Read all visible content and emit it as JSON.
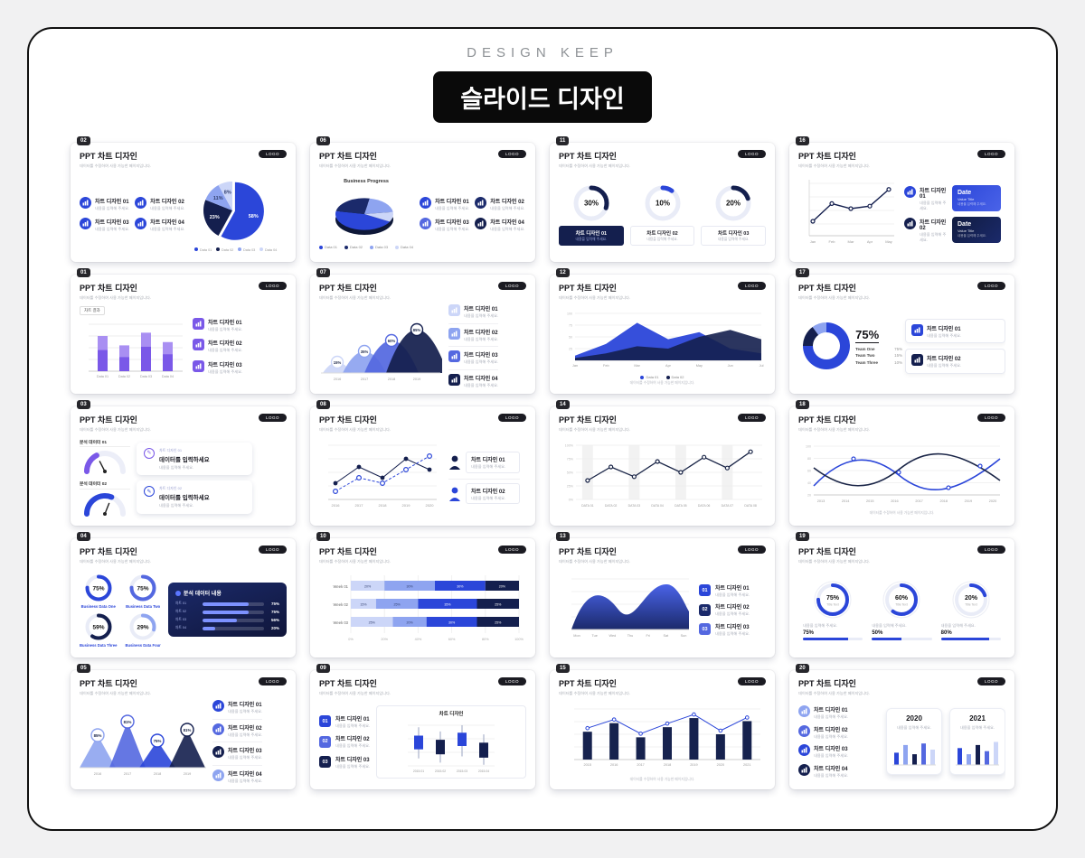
{
  "page": {
    "brand": "DESIGN KEEP",
    "title": "슬라이드 디자인"
  },
  "common": {
    "slide_title": "PPT 차트 디자인",
    "slide_subtitle": "데이터를 수정하여 사용 가능한 페이지입니다.",
    "logo": "LOGO",
    "item_sub": "내용을 입력해 주세요.",
    "caption": "데이터를 수정하여 사용 가능한 페이지입니다."
  },
  "colors": {
    "blue": "#2b46d9",
    "blue2": "#5468e0",
    "light": "#8ea4f0",
    "pale": "#ccd6f8",
    "navy": "#141f4e",
    "navy2": "#1b2a6b",
    "purple": "#7a58e8",
    "purple2": "#a98ff2",
    "track": "#e9ecf7"
  },
  "slides": [
    {
      "num": "02",
      "layout": "pie-legend",
      "items": [
        {
          "label": "차트 디자인 01"
        },
        {
          "label": "차트 디자인 02"
        },
        {
          "label": "차트 디자인 03"
        },
        {
          "label": "차트 디자인 04"
        }
      ],
      "pie": {
        "values": [
          58,
          23,
          11,
          8
        ],
        "labels": [
          "58%",
          "23%",
          "11%",
          "8%"
        ],
        "legend": [
          "Data 01",
          "Data 02",
          "Data 03",
          "Data 04"
        ]
      }
    },
    {
      "num": "06",
      "layout": "pie3d",
      "chart_title": "Business Progress",
      "pie": {
        "values": [
          45,
          25,
          20,
          10
        ],
        "legend": [
          "Data 01",
          "Data 02",
          "Data 03",
          "Data 04"
        ]
      },
      "items": [
        {
          "label": "차트 디자인 01"
        },
        {
          "label": "차트 디자인 02"
        },
        {
          "label": "차트 디자인 03"
        },
        {
          "label": "차트 디자인 04"
        }
      ]
    },
    {
      "num": "11",
      "layout": "donut-row",
      "items": [
        {
          "pct": 30,
          "label": "차트 디자인 01"
        },
        {
          "pct": 10,
          "label": "차트 디자인 02"
        },
        {
          "pct": 20,
          "label": "차트 디자인 03"
        }
      ]
    },
    {
      "num": "16",
      "layout": "line-dates",
      "line": {
        "values": [
          25,
          60,
          50,
          55,
          88
        ],
        "x": [
          "Jan",
          "Feb",
          "Mar",
          "Apr",
          "May"
        ]
      },
      "dates": [
        {
          "item": "차트 디자인 01",
          "date_label": "Date",
          "value_title": "Value Title"
        },
        {
          "item": "차트 디자인 02",
          "date_label": "Date",
          "value_title": "Value Title"
        }
      ]
    },
    {
      "num": "01",
      "layout": "purple-bars",
      "tag": "차트 결과",
      "bars": {
        "values": [
          75,
          55,
          82,
          62
        ],
        "inner": [
          45,
          30,
          52,
          36
        ],
        "x": [
          "Data 01",
          "Data 02",
          "Data 03",
          "Data 04"
        ]
      },
      "items": [
        {
          "label": "차트 디자인 01"
        },
        {
          "label": "차트 디자인 02"
        },
        {
          "label": "차트 디자인 03"
        }
      ]
    },
    {
      "num": "07",
      "layout": "hills",
      "hills": [
        {
          "pct": "15%"
        },
        {
          "pct": "35%"
        },
        {
          "pct": "60%"
        },
        {
          "pct": "85%"
        }
      ],
      "x": [
        "2016",
        "2017",
        "2018",
        "2019"
      ],
      "items": [
        {
          "label": "차트 디자인 01"
        },
        {
          "label": "차트 디자인 02"
        },
        {
          "label": "차트 디자인 03"
        },
        {
          "label": "차트 디자인 04"
        }
      ]
    },
    {
      "num": "12",
      "layout": "mountains",
      "series": [
        {
          "name": "Data 01",
          "values": [
            10,
            35,
            80,
            45,
            60,
            25,
            15
          ]
        },
        {
          "name": "Data 02",
          "values": [
            5,
            15,
            30,
            25,
            50,
            65,
            45
          ]
        }
      ],
      "x": [
        "Jan",
        "Feb",
        "Mar",
        "Apr",
        "May",
        "Jun",
        "Jul"
      ],
      "ylabels": [
        "100",
        "75",
        "50",
        "25"
      ]
    },
    {
      "num": "17",
      "layout": "donut-team",
      "donut": {
        "values": [
          75,
          15,
          10
        ],
        "big": "75%"
      },
      "teams": [
        {
          "name": "Team One",
          "value": "75%"
        },
        {
          "name": "Team Two",
          "value": "15%"
        },
        {
          "name": "Team Three",
          "value": "10%"
        }
      ],
      "cards": [
        {
          "label": "차트 디자인 01"
        },
        {
          "label": "차트 디자인 02"
        }
      ]
    },
    {
      "num": "03",
      "layout": "gauges",
      "gauges": [
        {
          "label": "분석 데이터 01",
          "frac": 0.35
        },
        {
          "label": "분석 데이터 02",
          "frac": 0.62
        }
      ],
      "inputs": [
        {
          "tag": "차트 디자인 01",
          "text": "데이터를 입력하세요"
        },
        {
          "tag": "차트 디자인 02",
          "text": "데이터를 입력하세요"
        }
      ]
    },
    {
      "num": "08",
      "layout": "scatter",
      "series": [
        {
          "values": [
            30,
            60,
            40,
            75,
            55
          ]
        },
        {
          "values": [
            15,
            40,
            30,
            55,
            80
          ]
        }
      ],
      "x": [
        "2016",
        "2017",
        "2018",
        "2019",
        "2020"
      ],
      "persons": [
        {
          "label": "차트 디자인 01"
        },
        {
          "label": "차트 디자인 02"
        }
      ]
    },
    {
      "num": "14",
      "layout": "step",
      "values": [
        35,
        60,
        42,
        70,
        50,
        78,
        58,
        88
      ],
      "x": [
        "DATA 01",
        "DATA 02",
        "DATA 03",
        "DATA 04",
        "DATA 05",
        "DATA 06",
        "DATA 07",
        "DATA 08"
      ],
      "ylabels": [
        "100%",
        "75%",
        "50%",
        "25%",
        "0%"
      ]
    },
    {
      "num": "18",
      "layout": "waves",
      "ylabels": [
        "100",
        "80",
        "60",
        "40",
        "20"
      ],
      "x": [
        "2013",
        "2014",
        "2015",
        "2016",
        "2017",
        "2018",
        "2019",
        "2020"
      ]
    },
    {
      "num": "04",
      "layout": "donuts-panel",
      "donuts": [
        {
          "pct": 75,
          "label": "Business Data One"
        },
        {
          "pct": 75,
          "label": "Business Data Two"
        },
        {
          "pct": 59,
          "label": "Business Data Three"
        },
        {
          "pct": 29,
          "label": "Business Data Four"
        }
      ],
      "panel": {
        "title": "분석 데이터 내용",
        "rows": [
          {
            "label": "차트 01",
            "pct": 75
          },
          {
            "label": "차트 02",
            "pct": 75
          },
          {
            "label": "차트 03",
            "pct": 56
          },
          {
            "label": "차트 04",
            "pct": 20
          }
        ]
      }
    },
    {
      "num": "10",
      "layout": "hstack",
      "rows": [
        {
          "label": "Week 01",
          "segments": [
            20,
            30,
            30,
            20
          ]
        },
        {
          "label": "Week 02",
          "segments": [
            15,
            25,
            35,
            25
          ]
        },
        {
          "label": "Week 03",
          "segments": [
            25,
            20,
            30,
            25
          ]
        }
      ],
      "xticks": [
        "0%",
        "20%",
        "40%",
        "60%",
        "80%",
        "100%"
      ]
    },
    {
      "num": "13",
      "layout": "wave-list",
      "x": [
        "Mon",
        "Tue",
        "Wed",
        "Thu",
        "Fri",
        "Sat",
        "Sun"
      ],
      "items": [
        {
          "num": "01",
          "label": "차트 디자인 01"
        },
        {
          "num": "02",
          "label": "차트 디자인 02"
        },
        {
          "num": "03",
          "label": "차트 디자인 03"
        }
      ]
    },
    {
      "num": "19",
      "layout": "rings",
      "rings": [
        {
          "pct": 75,
          "title": "Title Text"
        },
        {
          "pct": 60,
          "title": "Title Text"
        },
        {
          "pct": 20,
          "title": "Title Text"
        }
      ],
      "progress": [
        {
          "pct": 75
        },
        {
          "pct": 50
        },
        {
          "pct": 80
        }
      ]
    },
    {
      "num": "05",
      "layout": "peaks",
      "peaks": [
        {
          "value": 60,
          "pct": "85%",
          "x": "2016"
        },
        {
          "value": 85,
          "pct": "81%",
          "x": "2017"
        },
        {
          "value": 50,
          "pct": "75%",
          "x": "2018"
        },
        {
          "value": 70,
          "pct": "81%",
          "x": "2019"
        }
      ],
      "items": [
        {
          "label": "차트 디자인 01"
        },
        {
          "label": "차트 디자인 02"
        },
        {
          "label": "차트 디자인 03"
        },
        {
          "label": "차트 디자인 04"
        }
      ]
    },
    {
      "num": "09",
      "layout": "list-box",
      "chart_title": "차트 디자인",
      "items": [
        {
          "num": "01",
          "label": "차트 디자인 01"
        },
        {
          "num": "02",
          "label": "차트 디자인 02"
        },
        {
          "num": "03",
          "label": "차트 디자인 03"
        }
      ],
      "candles": [
        {
          "high": 95,
          "open": 75,
          "close": 42,
          "low": 20,
          "x": "2015.01"
        },
        {
          "high": 85,
          "open": 65,
          "close": 30,
          "low": 10,
          "x": "2015.02"
        },
        {
          "high": 100,
          "open": 82,
          "close": 50,
          "low": 25,
          "x": "2015.03"
        },
        {
          "high": 78,
          "open": 58,
          "close": 22,
          "low": 5,
          "x": "2015.04"
        }
      ]
    },
    {
      "num": "15",
      "layout": "bars-line",
      "values": [
        55,
        72,
        44,
        64,
        82,
        50,
        76
      ],
      "x": [
        "2015",
        "2016",
        "2017",
        "2018",
        "2019",
        "2020",
        "2021"
      ]
    },
    {
      "num": "20",
      "layout": "phones",
      "items": [
        {
          "label": "차트 디자인 01"
        },
        {
          "label": "차트 디자인 02"
        },
        {
          "label": "차트 디자인 03"
        },
        {
          "label": "차트 디자인 04"
        }
      ],
      "cards": [
        {
          "year": "2020",
          "values": [
            40,
            65,
            35,
            70,
            50
          ]
        },
        {
          "year": "2021",
          "values": [
            55,
            35,
            65,
            45,
            75
          ]
        }
      ]
    }
  ]
}
